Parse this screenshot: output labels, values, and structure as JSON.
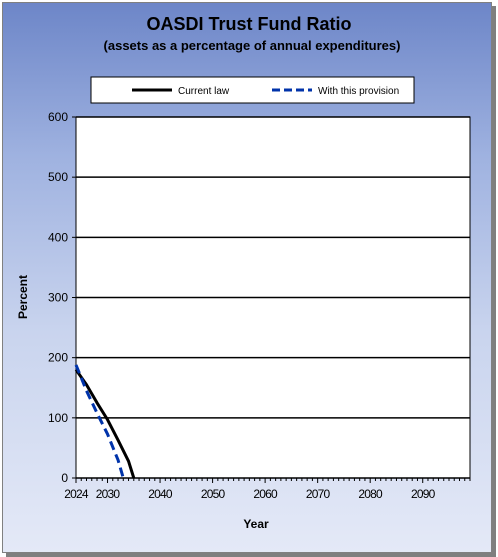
{
  "chart_data": {
    "type": "line",
    "title": "OASDI  Trust Fund Ratio",
    "subtitle": "(assets as a percentage of annual expenditures)",
    "xlabel": "Year",
    "ylabel": "Percent",
    "xlim": [
      2024,
      2099
    ],
    "ylim": [
      0,
      600
    ],
    "x_ticks": [
      2024,
      2030,
      2040,
      2050,
      2060,
      2070,
      2080,
      2090
    ],
    "y_ticks": [
      0,
      100,
      200,
      300,
      400,
      500,
      600
    ],
    "grid": "horizontal",
    "legend_position": "top",
    "series": [
      {
        "name": "Current law",
        "color": "#000000",
        "style": "solid",
        "x": [
          2024,
          2026,
          2028,
          2030,
          2032,
          2034,
          2035
        ],
        "y": [
          180,
          155,
          125,
          97,
          63,
          28,
          0
        ]
      },
      {
        "name": "With this provision",
        "color": "#0033aa",
        "style": "dashed",
        "x": [
          2024,
          2026,
          2028,
          2030,
          2032,
          2033
        ],
        "y": [
          188,
          145,
          108,
          73,
          30,
          0
        ]
      }
    ]
  }
}
